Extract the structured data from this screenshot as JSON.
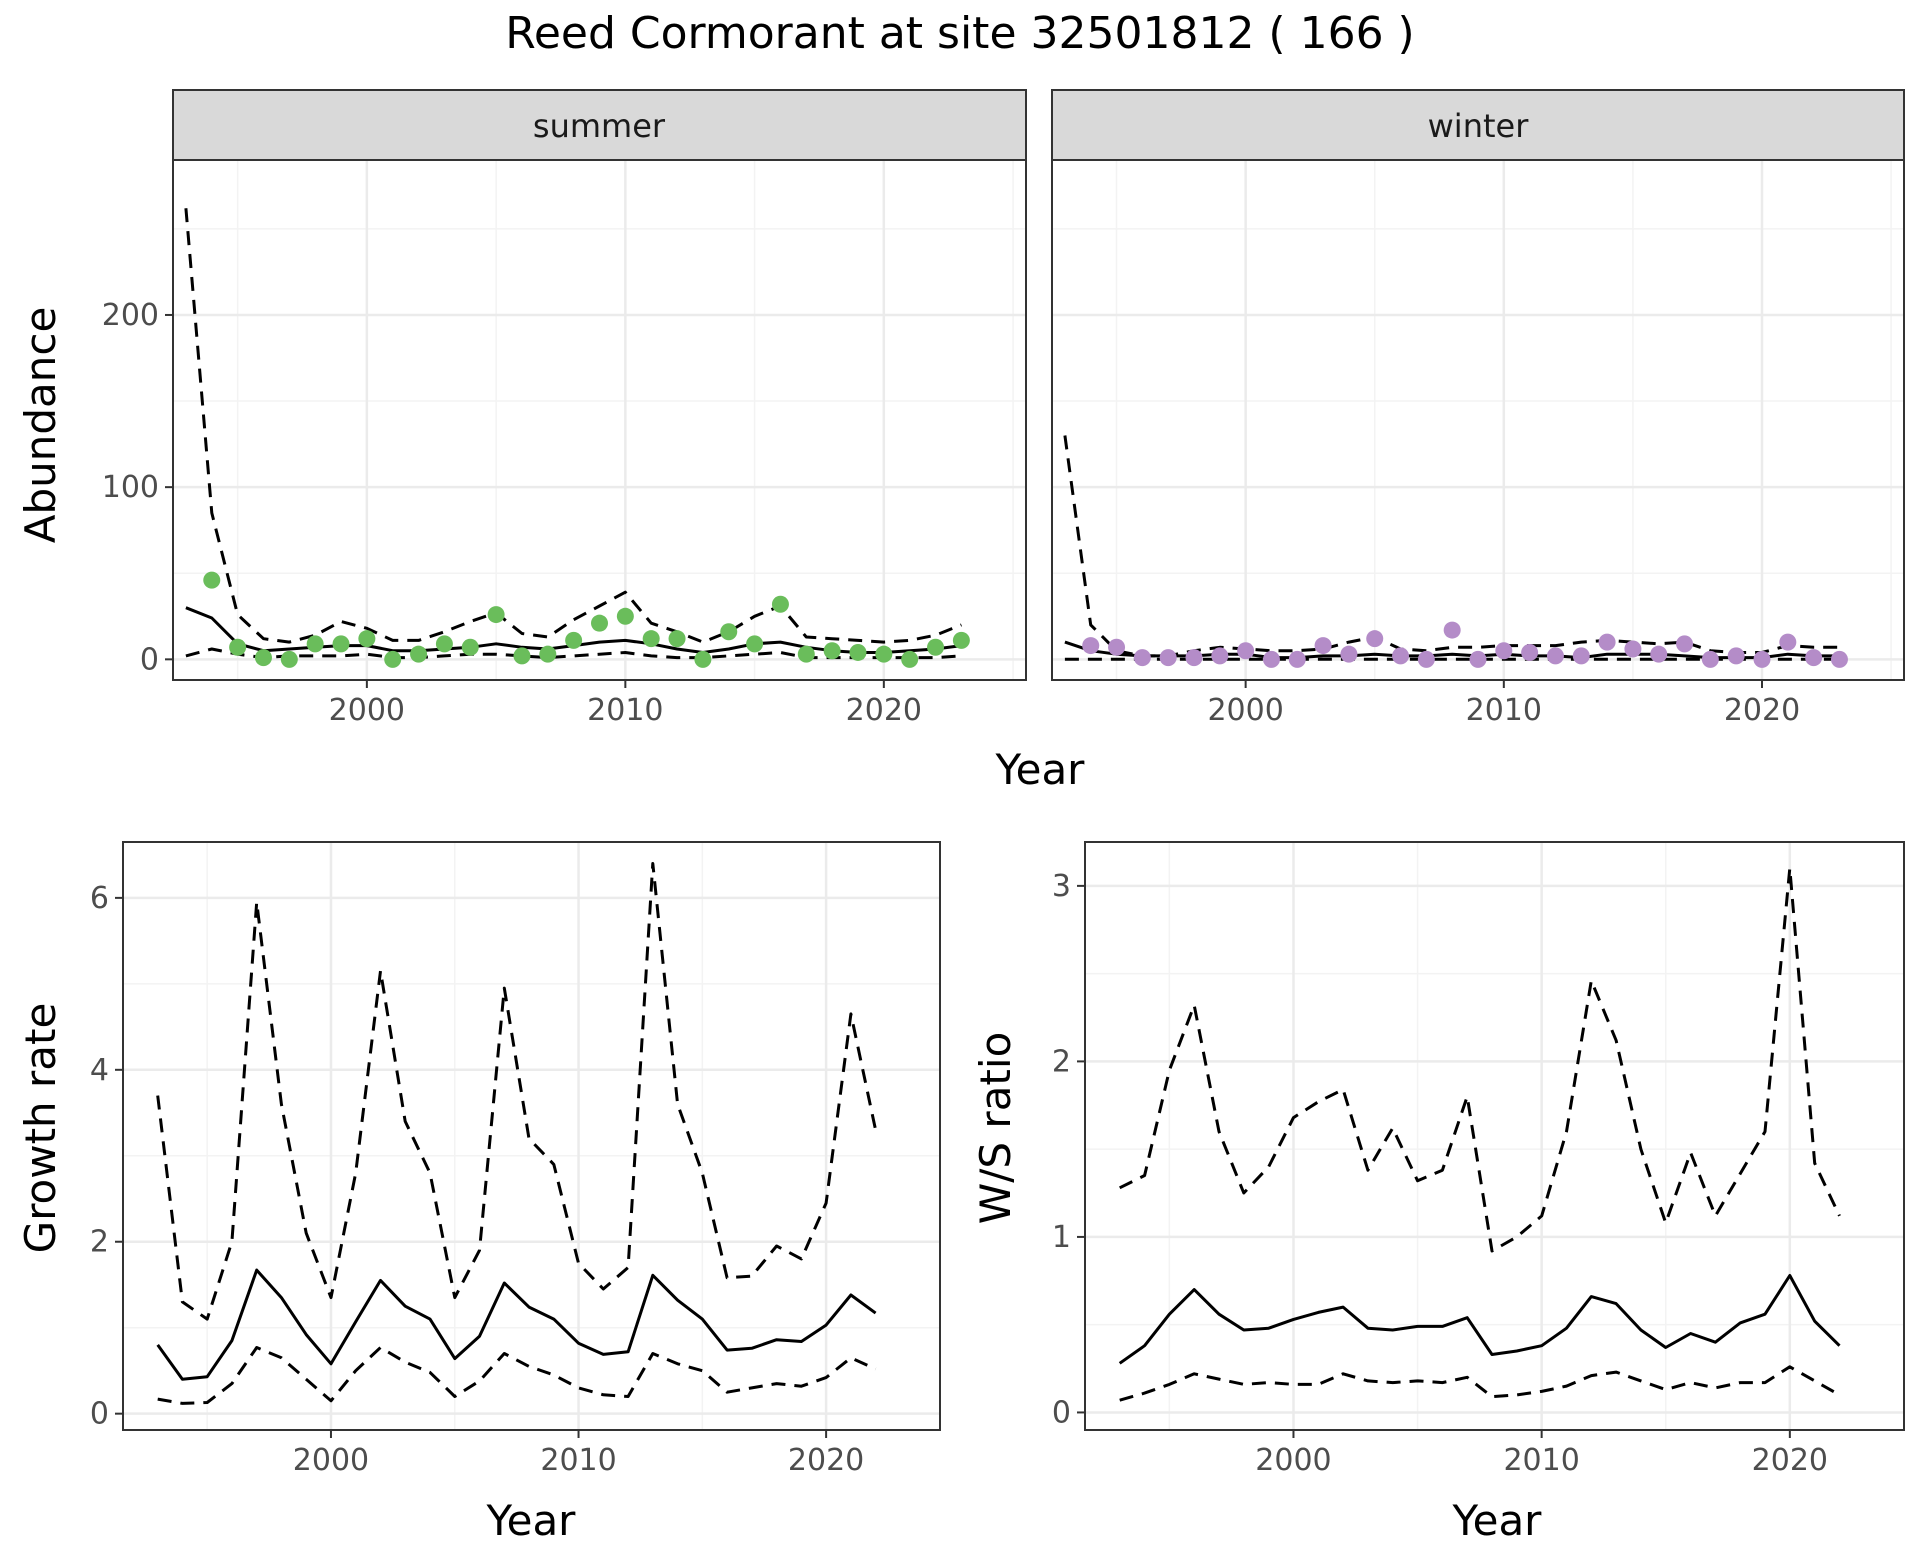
{
  "title": "Reed Cormorant at site 32501812 ( 166 )",
  "colors": {
    "summer_points": "#6abd5b",
    "winter_points": "#b48cc8",
    "lines": "#000000",
    "strip_fill": "#d9d9d9",
    "grid": "#ebebeb"
  },
  "chart_data": [
    {
      "type": "scatter",
      "panel": "summer",
      "strip_label": "summer",
      "xlabel": "Year",
      "ylabel": "Abundance",
      "xlim": [
        1992.5,
        2025.5
      ],
      "ylim": [
        -12,
        290
      ],
      "xticks": [
        2000,
        2010,
        2020
      ],
      "yticks": [
        0,
        100,
        200
      ],
      "grid": true,
      "points": {
        "x": [
          1994,
          1995,
          1996,
          1997,
          1998,
          1999,
          2000,
          2001,
          2002,
          2003,
          2004,
          2005,
          2006,
          2007,
          2008,
          2009,
          2010,
          2011,
          2012,
          2013,
          2014,
          2015,
          2016,
          2017,
          2018,
          2019,
          2020,
          2021,
          2022,
          2023
        ],
        "y": [
          46,
          7,
          1,
          0,
          9,
          9,
          12,
          0,
          3,
          9,
          7,
          26,
          2,
          3,
          11,
          21,
          25,
          12,
          12,
          0,
          16,
          9,
          32,
          3,
          5,
          4,
          3,
          0,
          7,
          11
        ]
      },
      "series": [
        {
          "line": "solid",
          "x": [
            1993,
            1994,
            1995,
            1996,
            1997,
            1998,
            1999,
            2000,
            2001,
            2002,
            2003,
            2004,
            2005,
            2006,
            2007,
            2008,
            2009,
            2010,
            2011,
            2012,
            2013,
            2014,
            2015,
            2016,
            2017,
            2018,
            2019,
            2020,
            2021,
            2022,
            2023
          ],
          "values": [
            30,
            24,
            9,
            5,
            6,
            7,
            8,
            8,
            5,
            5,
            6,
            7,
            9,
            7,
            6,
            8,
            10,
            11,
            9,
            6,
            4,
            6,
            9,
            10,
            7,
            5,
            4,
            4,
            5,
            6,
            8
          ]
        },
        {
          "line": "dashed",
          "x": [
            1993,
            1994,
            1995,
            1996,
            1997,
            1998,
            1999,
            2000,
            2001,
            2002,
            2003,
            2004,
            2005,
            2006,
            2007,
            2008,
            2009,
            2010,
            2011,
            2012,
            2013,
            2014,
            2015,
            2016,
            2017,
            2018,
            2019,
            2020,
            2021,
            2022,
            2023
          ],
          "values": [
            262,
            85,
            26,
            12,
            10,
            14,
            22,
            18,
            11,
            11,
            16,
            22,
            27,
            15,
            13,
            23,
            31,
            39,
            21,
            16,
            10,
            16,
            25,
            31,
            13,
            12,
            11,
            10,
            11,
            14,
            20
          ]
        },
        {
          "line": "dashed",
          "x": [
            1993,
            1994,
            1995,
            1996,
            1997,
            1998,
            1999,
            2000,
            2001,
            2002,
            2003,
            2004,
            2005,
            2006,
            2007,
            2008,
            2009,
            2010,
            2011,
            2012,
            2013,
            2014,
            2015,
            2016,
            2017,
            2018,
            2019,
            2020,
            2021,
            2022,
            2023
          ],
          "values": [
            2,
            6,
            3,
            1,
            2,
            2,
            2,
            3,
            1,
            1,
            2,
            3,
            3,
            2,
            1,
            2,
            3,
            4,
            2,
            1,
            1,
            2,
            3,
            4,
            1,
            1,
            1,
            1,
            1,
            1,
            2
          ]
        }
      ]
    },
    {
      "type": "scatter",
      "panel": "winter",
      "strip_label": "winter",
      "xlabel": "Year",
      "ylabel": "",
      "xlim": [
        1992.5,
        2025.5
      ],
      "ylim": [
        -12,
        290
      ],
      "xticks": [
        2000,
        2010,
        2020
      ],
      "yticks": [
        0,
        100,
        200
      ],
      "grid": true,
      "points": {
        "x": [
          1994,
          1995,
          1996,
          1997,
          1998,
          1999,
          2000,
          2001,
          2002,
          2003,
          2004,
          2005,
          2006,
          2007,
          2008,
          2009,
          2010,
          2011,
          2012,
          2013,
          2014,
          2015,
          2016,
          2017,
          2018,
          2019,
          2020,
          2021,
          2022,
          2023
        ],
        "y": [
          8,
          7,
          1,
          1,
          1,
          2,
          5,
          0,
          0,
          8,
          3,
          12,
          2,
          0,
          17,
          0,
          5,
          4,
          2,
          2,
          10,
          6,
          3,
          9,
          0,
          2,
          0,
          10,
          1,
          0
        ]
      },
      "series": [
        {
          "line": "solid",
          "x": [
            1993,
            1994,
            1995,
            1996,
            1997,
            1998,
            1999,
            2000,
            2001,
            2002,
            2003,
            2004,
            2005,
            2006,
            2007,
            2008,
            2009,
            2010,
            2011,
            2012,
            2013,
            2014,
            2015,
            2016,
            2017,
            2018,
            2019,
            2020,
            2021,
            2022,
            2023
          ],
          "values": [
            10,
            5,
            3,
            2,
            2,
            2,
            3,
            3,
            1,
            1,
            2,
            2,
            3,
            2,
            2,
            3,
            2,
            3,
            2,
            2,
            1,
            3,
            3,
            3,
            2,
            1,
            1,
            1,
            3,
            2,
            2
          ]
        },
        {
          "line": "dashed",
          "x": [
            1993,
            1994,
            1995,
            1996,
            1997,
            1998,
            1999,
            2000,
            2001,
            2002,
            2003,
            2004,
            2005,
            2006,
            2007,
            2008,
            2009,
            2010,
            2011,
            2012,
            2013,
            2014,
            2015,
            2016,
            2017,
            2018,
            2019,
            2020,
            2021,
            2022,
            2023
          ],
          "values": [
            130,
            20,
            5,
            2,
            2,
            5,
            7,
            6,
            5,
            5,
            6,
            10,
            13,
            6,
            5,
            7,
            7,
            8,
            8,
            8,
            10,
            11,
            10,
            9,
            10,
            5,
            4,
            4,
            8,
            7,
            7
          ]
        },
        {
          "line": "dashed",
          "x": [
            1993,
            1994,
            1995,
            1996,
            1997,
            1998,
            1999,
            2000,
            2001,
            2002,
            2003,
            2004,
            2005,
            2006,
            2007,
            2008,
            2009,
            2010,
            2011,
            2012,
            2013,
            2014,
            2015,
            2016,
            2017,
            2018,
            2019,
            2020,
            2021,
            2022,
            2023
          ],
          "values": [
            0,
            0,
            0,
            0,
            0,
            0,
            0,
            0,
            0,
            0,
            0,
            0,
            0,
            0,
            0,
            0,
            0,
            0,
            0,
            0,
            0,
            0,
            0,
            0,
            0,
            0,
            0,
            0,
            0,
            0,
            0
          ]
        }
      ]
    },
    {
      "type": "line",
      "panel": "growth",
      "xlabel": "Year",
      "ylabel": "Growth rate",
      "xlim": [
        1991.6,
        2024.6
      ],
      "ylim": [
        -0.19,
        6.65
      ],
      "xticks": [
        2000,
        2010,
        2020
      ],
      "yticks": [
        0,
        2,
        4,
        6
      ],
      "grid": true,
      "series": [
        {
          "line": "solid",
          "x": [
            1993,
            1994,
            1995,
            1996,
            1997,
            1998,
            1999,
            2000,
            2001,
            2002,
            2003,
            2004,
            2005,
            2006,
            2007,
            2008,
            2009,
            2010,
            2011,
            2012,
            2013,
            2014,
            2015,
            2016,
            2017,
            2018,
            2019,
            2020,
            2021,
            2022
          ],
          "values": [
            0.8,
            0.4,
            0.43,
            0.85,
            1.67,
            1.35,
            0.92,
            0.58,
            1.07,
            1.55,
            1.25,
            1.1,
            0.64,
            0.9,
            1.52,
            1.24,
            1.1,
            0.82,
            0.69,
            0.72,
            1.61,
            1.32,
            1.1,
            0.74,
            0.76,
            0.86,
            0.84,
            1.03,
            1.38,
            1.17
          ]
        },
        {
          "line": "dashed",
          "x": [
            1993,
            1994,
            1995,
            1996,
            1997,
            1998,
            1999,
            2000,
            2001,
            2002,
            2003,
            2004,
            2005,
            2006,
            2007,
            2008,
            2009,
            2010,
            2011,
            2012,
            2013,
            2014,
            2015,
            2016,
            2017,
            2018,
            2019,
            2020,
            2021,
            2022
          ],
          "values": [
            3.7,
            1.3,
            1.1,
            2.0,
            5.95,
            3.6,
            2.1,
            1.35,
            2.8,
            5.15,
            3.4,
            2.8,
            1.35,
            1.9,
            4.95,
            3.2,
            2.9,
            1.75,
            1.45,
            1.7,
            6.4,
            3.6,
            2.8,
            1.58,
            1.6,
            1.95,
            1.8,
            2.45,
            4.65,
            3.3
          ]
        },
        {
          "line": "dashed",
          "x": [
            1993,
            1994,
            1995,
            1996,
            1997,
            1998,
            1999,
            2000,
            2001,
            2002,
            2003,
            2004,
            2005,
            2006,
            2007,
            2008,
            2009,
            2010,
            2011,
            2012,
            2013,
            2014,
            2015,
            2016,
            2017,
            2018,
            2019,
            2020,
            2021,
            2022
          ],
          "values": [
            0.17,
            0.12,
            0.13,
            0.35,
            0.77,
            0.65,
            0.4,
            0.15,
            0.5,
            0.77,
            0.6,
            0.48,
            0.2,
            0.38,
            0.7,
            0.55,
            0.45,
            0.3,
            0.22,
            0.2,
            0.7,
            0.58,
            0.5,
            0.25,
            0.3,
            0.35,
            0.32,
            0.42,
            0.65,
            0.52
          ]
        }
      ]
    },
    {
      "type": "line",
      "panel": "ratio",
      "xlabel": "Year",
      "ylabel": "W/S ratio",
      "xlim": [
        1991.6,
        2024.6
      ],
      "ylim": [
        -0.1,
        3.25
      ],
      "xticks": [
        2000,
        2010,
        2020
      ],
      "yticks": [
        0,
        1,
        2,
        3
      ],
      "grid": true,
      "series": [
        {
          "line": "solid",
          "x": [
            1993,
            1994,
            1995,
            1996,
            1997,
            1998,
            1999,
            2000,
            2001,
            2002,
            2003,
            2004,
            2005,
            2006,
            2007,
            2008,
            2009,
            2010,
            2011,
            2012,
            2013,
            2014,
            2015,
            2016,
            2017,
            2018,
            2019,
            2020,
            2021,
            2022
          ],
          "values": [
            0.28,
            0.38,
            0.56,
            0.7,
            0.56,
            0.47,
            0.48,
            0.53,
            0.57,
            0.6,
            0.48,
            0.47,
            0.49,
            0.49,
            0.54,
            0.33,
            0.35,
            0.38,
            0.48,
            0.66,
            0.62,
            0.47,
            0.37,
            0.45,
            0.4,
            0.51,
            0.56,
            0.78,
            0.52,
            0.38
          ]
        },
        {
          "line": "dashed",
          "x": [
            1993,
            1994,
            1995,
            1996,
            1997,
            1998,
            1999,
            2000,
            2001,
            2002,
            2003,
            2004,
            2005,
            2006,
            2007,
            2008,
            2009,
            2010,
            2011,
            2012,
            2013,
            2014,
            2015,
            2016,
            2017,
            2018,
            2019,
            2020,
            2021,
            2022
          ],
          "values": [
            1.28,
            1.35,
            1.95,
            2.32,
            1.6,
            1.25,
            1.4,
            1.68,
            1.77,
            1.84,
            1.38,
            1.62,
            1.32,
            1.38,
            1.8,
            0.92,
            1.0,
            1.12,
            1.6,
            2.46,
            2.12,
            1.5,
            1.08,
            1.48,
            1.12,
            1.36,
            1.6,
            3.1,
            1.42,
            1.12
          ]
        },
        {
          "line": "dashed",
          "x": [
            1993,
            1994,
            1995,
            1996,
            1997,
            1998,
            1999,
            2000,
            2001,
            2002,
            2003,
            2004,
            2005,
            2006,
            2007,
            2008,
            2009,
            2010,
            2011,
            2012,
            2013,
            2014,
            2015,
            2016,
            2017,
            2018,
            2019,
            2020,
            2021,
            2022
          ],
          "values": [
            0.07,
            0.11,
            0.16,
            0.22,
            0.19,
            0.16,
            0.17,
            0.16,
            0.16,
            0.22,
            0.18,
            0.17,
            0.18,
            0.17,
            0.2,
            0.09,
            0.1,
            0.12,
            0.15,
            0.21,
            0.23,
            0.18,
            0.13,
            0.17,
            0.14,
            0.17,
            0.17,
            0.26,
            0.18,
            0.1
          ]
        }
      ]
    }
  ]
}
